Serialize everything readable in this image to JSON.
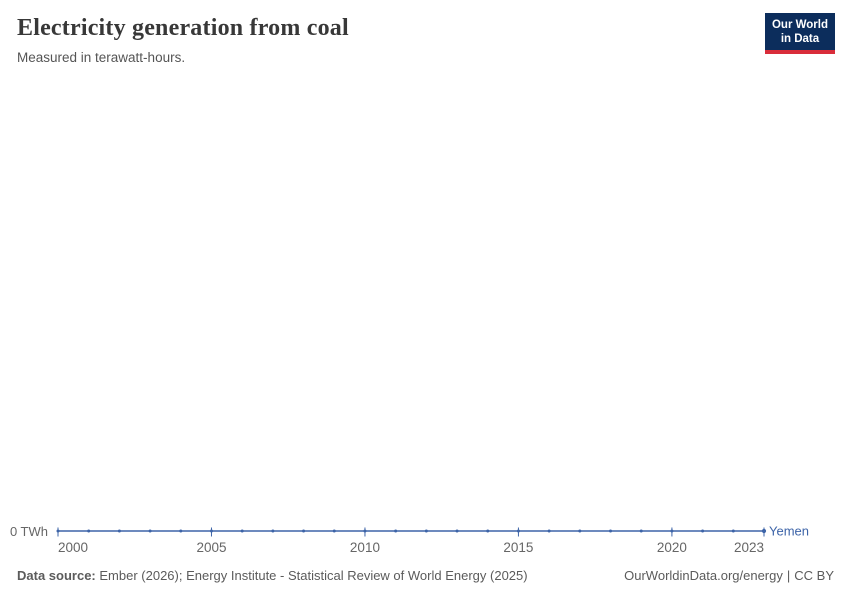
{
  "header": {
    "title": "Electricity generation from coal",
    "subtitle": "Measured in terawatt-hours.",
    "logo": {
      "line1": "Our World",
      "line2": "in Data"
    }
  },
  "chart_data": {
    "type": "line",
    "title": "Electricity generation from coal",
    "subtitle": "Measured in terawatt-hours.",
    "unit": "TWh",
    "x": [
      2000,
      2001,
      2002,
      2003,
      2004,
      2005,
      2006,
      2007,
      2008,
      2009,
      2010,
      2011,
      2012,
      2013,
      2014,
      2015,
      2016,
      2017,
      2018,
      2019,
      2020,
      2021,
      2022,
      2023
    ],
    "series": [
      {
        "name": "Yemen",
        "color": "#3d64a8",
        "values": [
          0,
          0,
          0,
          0,
          0,
          0,
          0,
          0,
          0,
          0,
          0,
          0,
          0,
          0,
          0,
          0,
          0,
          0,
          0,
          0,
          0,
          0,
          0,
          0
        ]
      }
    ],
    "x_ticks": [
      2000,
      2005,
      2010,
      2015,
      2020,
      2023
    ],
    "y_tick_label": "0 TWh",
    "ylim": [
      0,
      0
    ],
    "grid": false,
    "legend_position": "end-of-line"
  },
  "footer": {
    "datasource_label": "Data source:",
    "datasource_text": "Ember (2026); Energy Institute - Statistical Review of World Energy (2025)",
    "url": "OurWorldinData.org/energy",
    "separator": "|",
    "license": "CC BY"
  },
  "colors": {
    "line": "#3d64a8",
    "axis_text": "#666666",
    "title_text": "#383838",
    "subtitle_text": "#555555",
    "footer_text": "#5b5b5b",
    "logo_bg": "#0c2d5c",
    "logo_accent": "#d92d3a",
    "background": "#ffffff"
  }
}
